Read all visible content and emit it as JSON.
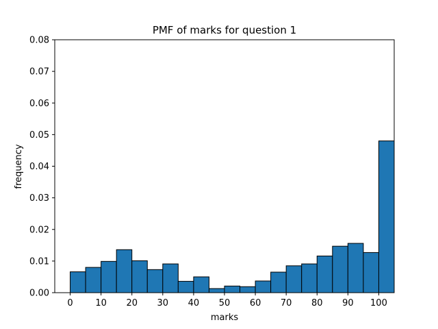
{
  "chart_data": {
    "type": "bar",
    "title": "PMF of marks for question 1",
    "xlabel": "marks",
    "ylabel": "frequency",
    "xlim": [
      -5,
      105
    ],
    "ylim": [
      0,
      0.08
    ],
    "xticks": [
      0,
      10,
      20,
      30,
      40,
      50,
      60,
      70,
      80,
      90,
      100
    ],
    "yticks": [
      0.0,
      0.01,
      0.02,
      0.03,
      0.04,
      0.05,
      0.06,
      0.07,
      0.08
    ],
    "ytick_labels": [
      "0.00",
      "0.01",
      "0.02",
      "0.03",
      "0.04",
      "0.05",
      "0.06",
      "0.07",
      "0.08"
    ],
    "bin_width": 5,
    "bins": [
      {
        "left": 0,
        "value": 0.0066
      },
      {
        "left": 5,
        "value": 0.008
      },
      {
        "left": 10,
        "value": 0.0099
      },
      {
        "left": 15,
        "value": 0.0136
      },
      {
        "left": 20,
        "value": 0.0101
      },
      {
        "left": 25,
        "value": 0.0073
      },
      {
        "left": 30,
        "value": 0.0091
      },
      {
        "left": 35,
        "value": 0.0036
      },
      {
        "left": 40,
        "value": 0.005
      },
      {
        "left": 45,
        "value": 0.0013
      },
      {
        "left": 50,
        "value": 0.0021
      },
      {
        "left": 55,
        "value": 0.0019
      },
      {
        "left": 60,
        "value": 0.0037
      },
      {
        "left": 65,
        "value": 0.0065
      },
      {
        "left": 70,
        "value": 0.0085
      },
      {
        "left": 75,
        "value": 0.0091
      },
      {
        "left": 80,
        "value": 0.0116
      },
      {
        "left": 85,
        "value": 0.0147
      },
      {
        "left": 90,
        "value": 0.0156
      },
      {
        "left": 95,
        "value": 0.0127
      },
      {
        "left": 100,
        "value": 0.048
      }
    ],
    "bar_color": "#1f77b4",
    "edge_color": "#000000",
    "grid": false,
    "legend": "none"
  }
}
